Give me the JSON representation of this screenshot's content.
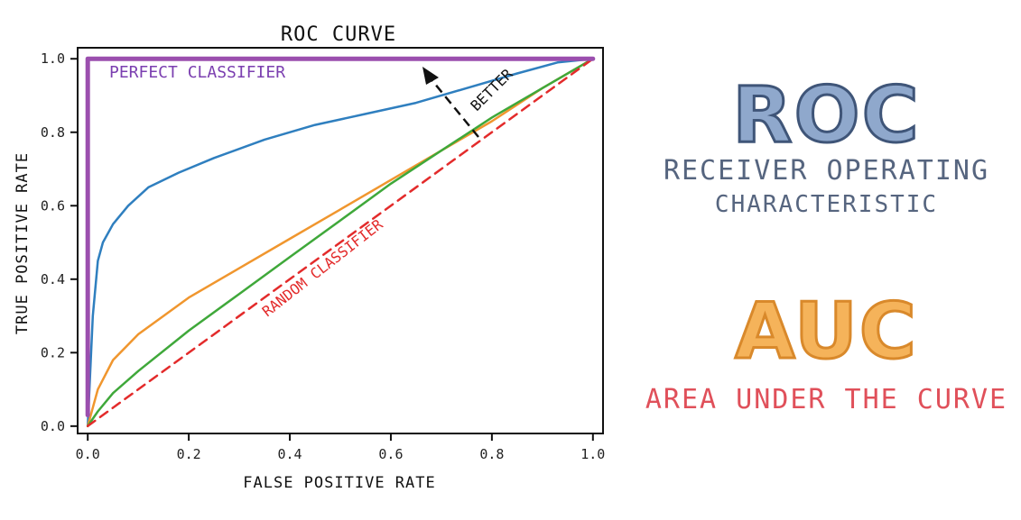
{
  "chart_data": {
    "type": "line",
    "title": "ROC CURVE",
    "xlabel": "FALSE POSITIVE RATE",
    "ylabel": "TRUE POSITIVE RATE",
    "xlim": [
      -0.02,
      1.02
    ],
    "ylim": [
      -0.02,
      1.03
    ],
    "xticks": [
      "0.0",
      "0.2",
      "0.4",
      "0.6",
      "0.8",
      "1.0"
    ],
    "yticks": [
      "0.0",
      "0.2",
      "0.4",
      "0.6",
      "0.8",
      "1.0"
    ],
    "grid": false,
    "series": [
      {
        "name": "PERFECT CLASSIFIER",
        "color": "#9b4fae",
        "style": "solid",
        "x": [
          0.0,
          0.0,
          1.0
        ],
        "y": [
          0.03,
          1.0,
          1.0
        ]
      },
      {
        "name": "",
        "color": "#2f7fbf",
        "style": "solid",
        "x": [
          0.0,
          0.01,
          0.02,
          0.03,
          0.05,
          0.08,
          0.12,
          0.18,
          0.25,
          0.35,
          0.45,
          0.55,
          0.65,
          0.75,
          0.85,
          0.93,
          1.0
        ],
        "y": [
          0.0,
          0.3,
          0.45,
          0.5,
          0.55,
          0.6,
          0.65,
          0.69,
          0.73,
          0.78,
          0.82,
          0.85,
          0.88,
          0.92,
          0.96,
          0.99,
          1.0
        ]
      },
      {
        "name": "",
        "color": "#f0962e",
        "style": "solid",
        "x": [
          0.0,
          0.02,
          0.05,
          0.1,
          0.15,
          0.2,
          0.3,
          0.4,
          0.5,
          0.6,
          0.7,
          0.8,
          0.9,
          1.0
        ],
        "y": [
          0.0,
          0.1,
          0.18,
          0.25,
          0.3,
          0.35,
          0.43,
          0.51,
          0.59,
          0.67,
          0.75,
          0.83,
          0.92,
          1.0
        ]
      },
      {
        "name": "",
        "color": "#3fa83a",
        "style": "solid",
        "x": [
          0.0,
          0.02,
          0.05,
          0.1,
          0.2,
          0.3,
          0.4,
          0.5,
          0.6,
          0.7,
          0.8,
          0.9,
          1.0
        ],
        "y": [
          0.0,
          0.04,
          0.09,
          0.15,
          0.26,
          0.36,
          0.46,
          0.56,
          0.66,
          0.75,
          0.84,
          0.92,
          1.0
        ]
      },
      {
        "name": "RANDOM CLASSIFIER",
        "color": "#e32b2b",
        "style": "dashed",
        "x": [
          0.0,
          1.0
        ],
        "y": [
          0.0,
          1.0
        ]
      }
    ],
    "annotations": [
      {
        "text": "PERFECT CLASSIFIER",
        "color": "#7b3fb0"
      },
      {
        "text": "RANDOM CLASSIFIER",
        "color": "#e32b2b"
      },
      {
        "text": "BETTER",
        "color": "#111111"
      }
    ]
  },
  "side_panel": {
    "roc_word": "ROC",
    "roc_sub_line1": "RECEIVER OPERATING",
    "roc_sub_line2": "CHARACTERISTIC",
    "auc_word": "AUC",
    "auc_sub": "AREA UNDER THE CURVE"
  }
}
